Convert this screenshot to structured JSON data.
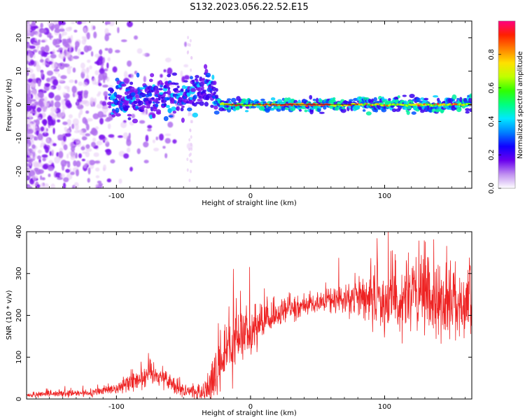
{
  "figure": {
    "title": "S132.2023.056.22.52.E15"
  },
  "colors": {
    "snr_line": "#ee2222",
    "spectrogram_palette": [
      "#ffffff",
      "#e6c8f5",
      "#b070ee",
      "#7a10ee",
      "#3a00ee",
      "#0050ff",
      "#00d0ff",
      "#00f0a0",
      "#40ff20",
      "#d0ff00",
      "#ffb000",
      "#ff3020",
      "#ee1066"
    ]
  },
  "chart_data": [
    {
      "type": "heatmap",
      "name": "spectrogram",
      "xlabel": "Height of straight line (km)",
      "ylabel": "Frequency (Hz)",
      "xlim": [
        -167,
        165
      ],
      "ylim": [
        -25,
        25
      ],
      "xticks": [
        -100,
        0,
        100
      ],
      "xtick_labels": [
        "-100",
        "0",
        "100"
      ],
      "yticks": [
        -20,
        -10,
        0,
        10,
        20
      ],
      "ytick_labels": [
        "-20",
        "-10",
        "0",
        "10",
        "20"
      ],
      "grid": false,
      "signal_track": [
        {
          "x": -100,
          "y": 1.5
        },
        {
          "x": -80,
          "y": 2.5
        },
        {
          "x": -60,
          "y": 1.5
        },
        {
          "x": -45,
          "y": 3
        },
        {
          "x": -35,
          "y": 5
        },
        {
          "x": -30,
          "y": 4
        },
        {
          "x": -25,
          "y": 0.5
        },
        {
          "x": -15,
          "y": 0
        },
        {
          "x": 0,
          "y": 0
        },
        {
          "x": 50,
          "y": 0
        },
        {
          "x": 100,
          "y": 0
        },
        {
          "x": 165,
          "y": 0
        }
      ],
      "colorbar": {
        "label": "Normalized spectral amplitude",
        "range": [
          0,
          1
        ],
        "ticks": [
          0.0,
          0.2,
          0.4,
          0.6,
          0.8
        ],
        "tick_labels": [
          "0.0",
          "0.2",
          "0.4",
          "0.6",
          "0.8"
        ]
      }
    },
    {
      "type": "line",
      "name": "snr",
      "xlabel": "Height of straight line (km)",
      "ylabel": "SNR (10 * v/v)",
      "xlim": [
        -167,
        165
      ],
      "ylim": [
        0,
        400
      ],
      "xticks": [
        -100,
        0,
        100
      ],
      "xtick_labels": [
        "-100",
        "0",
        "100"
      ],
      "yticks": [
        0,
        100,
        200,
        300,
        400
      ],
      "ytick_labels": [
        "0",
        "100",
        "200",
        "300",
        "400"
      ],
      "grid": false,
      "envelope": {
        "x": [
          -167,
          -140,
          -120,
          -100,
          -90,
          -80,
          -75,
          -70,
          -60,
          -55,
          -50,
          -40,
          -30,
          -25,
          -20,
          -15,
          -10,
          -5,
          0,
          10,
          20,
          30,
          40,
          50,
          60,
          70,
          80,
          90,
          100,
          110,
          120,
          130,
          140,
          150,
          165
        ],
        "y": [
          10,
          12,
          14,
          25,
          40,
          55,
          65,
          60,
          40,
          30,
          20,
          15,
          25,
          60,
          100,
          120,
          140,
          150,
          160,
          180,
          200,
          215,
          225,
          230,
          235,
          240,
          240,
          245,
          240,
          245,
          240,
          240,
          235,
          240,
          235
        ]
      },
      "spread": {
        "x": [
          -167,
          -100,
          -80,
          -60,
          -40,
          -30,
          -20,
          -10,
          0,
          20,
          40,
          60,
          80,
          100,
          120,
          140,
          165
        ],
        "y": [
          6,
          10,
          30,
          20,
          15,
          45,
          80,
          70,
          55,
          30,
          18,
          25,
          45,
          70,
          90,
          80,
          80
        ]
      }
    }
  ]
}
